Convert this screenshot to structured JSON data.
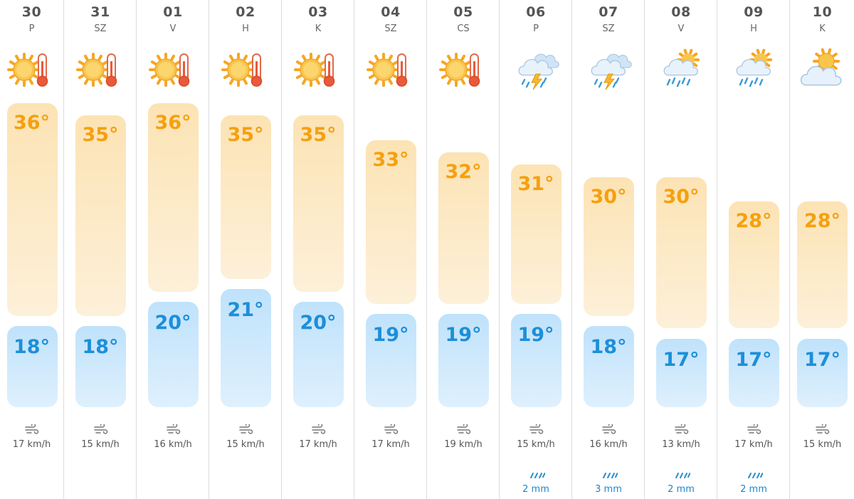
{
  "colors": {
    "high_bar_top": "#fce3b4",
    "high_bar_bottom": "#fdf0d9",
    "low_bar_top": "#bfe2fb",
    "low_bar_bottom": "#dff0fd",
    "high_text": "#f5a00f",
    "low_text": "#1d8fd8",
    "rain_text": "#1f86c9",
    "divider": "#dcdcdc"
  },
  "days": [
    {
      "date": "30",
      "dow": "P",
      "icon": "sun-thermometer-icon",
      "high": "36°",
      "low": "18°",
      "wind": "17 km/h",
      "rain": ""
    },
    {
      "date": "31",
      "dow": "SZ",
      "icon": "sun-thermometer-icon",
      "high": "35°",
      "low": "18°",
      "wind": "15 km/h",
      "rain": ""
    },
    {
      "date": "01",
      "dow": "V",
      "icon": "sun-thermometer-icon",
      "high": "36°",
      "low": "20°",
      "wind": "16 km/h",
      "rain": ""
    },
    {
      "date": "02",
      "dow": "H",
      "icon": "sun-thermometer-icon",
      "high": "35°",
      "low": "21°",
      "wind": "15 km/h",
      "rain": ""
    },
    {
      "date": "03",
      "dow": "K",
      "icon": "sun-thermometer-icon",
      "high": "35°",
      "low": "20°",
      "wind": "17 km/h",
      "rain": ""
    },
    {
      "date": "04",
      "dow": "SZ",
      "icon": "sun-thermometer-icon",
      "high": "33°",
      "low": "19°",
      "wind": "17 km/h",
      "rain": ""
    },
    {
      "date": "05",
      "dow": "CS",
      "icon": "sun-thermometer-icon",
      "high": "32°",
      "low": "19°",
      "wind": "19 km/h",
      "rain": ""
    },
    {
      "date": "06",
      "dow": "P",
      "icon": "thunderstorm-icon",
      "high": "31°",
      "low": "19°",
      "wind": "15 km/h",
      "rain": "2 mm"
    },
    {
      "date": "07",
      "dow": "SZ",
      "icon": "thunderstorm-icon",
      "high": "30°",
      "low": "18°",
      "wind": "16 km/h",
      "rain": "3 mm"
    },
    {
      "date": "08",
      "dow": "V",
      "icon": "rain-sun-icon",
      "high": "30°",
      "low": "17°",
      "wind": "13 km/h",
      "rain": "2 mm"
    },
    {
      "date": "09",
      "dow": "H",
      "icon": "rain-sun-icon",
      "high": "28°",
      "low": "17°",
      "wind": "17 km/h",
      "rain": "2 mm"
    },
    {
      "date": "10",
      "dow": "K",
      "icon": "partly-cloudy-icon",
      "high": "28°",
      "low": "17°",
      "wind": "15 km/h",
      "rain": ""
    }
  ]
}
